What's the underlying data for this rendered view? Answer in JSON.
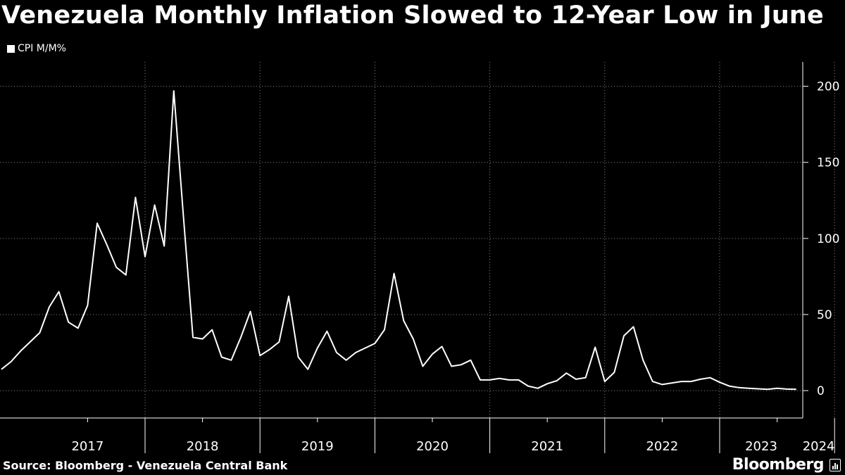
{
  "title": "Venezuela Monthly Inflation Slowed to 12-Year Low in June",
  "legend": {
    "label": "CPI M/M%"
  },
  "source": "Source: Bloomberg - Venezuela Central Bank",
  "logo": "Bloomberg",
  "colors": {
    "background": "#000000",
    "line": "#ffffff",
    "grid": "#888888"
  },
  "chart_data": {
    "type": "line",
    "title": "Venezuela Monthly Inflation Slowed to 12-Year Low in June",
    "xlabel": "",
    "ylabel": "CPI M/M%",
    "ylim": [
      -18,
      216
    ],
    "y_ticks": [
      0,
      50,
      100,
      150,
      200
    ],
    "y_axis_position": "right",
    "grid": true,
    "legend_position": "top-left",
    "year_labels": [
      "2017",
      "2018",
      "2019",
      "2020",
      "2021",
      "2022",
      "2023",
      "2024"
    ],
    "x_start": "2016-10",
    "series": [
      {
        "name": "CPI M/M%",
        "values": [
          14,
          19,
          26,
          32,
          38,
          55,
          65,
          45,
          41,
          56,
          110,
          96,
          81,
          76,
          127,
          88,
          122,
          95,
          197,
          115,
          35,
          34,
          40,
          22,
          20,
          35,
          52,
          23,
          27,
          32,
          62,
          22,
          14,
          28,
          39,
          25,
          20,
          25,
          28,
          31,
          40,
          77,
          46,
          34,
          16,
          24,
          29,
          16,
          17,
          20,
          7,
          7,
          8,
          7,
          7,
          3,
          1.5,
          4.5,
          6.5,
          11.5,
          7.5,
          8.5,
          28.5,
          6,
          12,
          36,
          42,
          20,
          6,
          4,
          5,
          6,
          6,
          7.5,
          8.5,
          5.5,
          3,
          2,
          1.5,
          1.2,
          0.8,
          1.5,
          1,
          0.8
        ]
      }
    ]
  }
}
